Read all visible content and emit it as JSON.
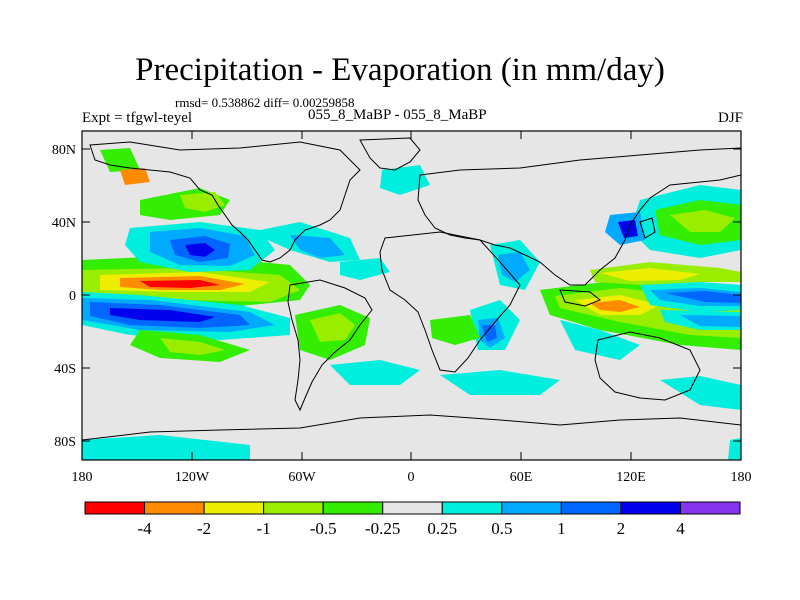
{
  "title": "Precipitation - Evaporation (in mm/day)",
  "stats": "rmsd= 0.538862 diff= 0.00259858",
  "expt_label": "Expt = tfgwl-teyel",
  "case_label": "055_8_MaBP - 055_8_MaBP",
  "season": "DJF",
  "lat_labels": [
    "80N",
    "40N",
    "0",
    "40S",
    "80S"
  ],
  "lon_labels": [
    "180",
    "120W",
    "60W",
    "0",
    "60E",
    "120E",
    "180"
  ],
  "colorbar": {
    "colors": [
      "#ff0000",
      "#ff8c00",
      "#eeee00",
      "#99ee00",
      "#33ee00",
      "#e6e6e6",
      "#00eedd",
      "#00aaff",
      "#0066ff",
      "#0000ee",
      "#8833ee"
    ],
    "labels": [
      "-4",
      "-2",
      "-1",
      "-0.5",
      "-0.25",
      "0.25",
      "0.5",
      "1",
      "2",
      "4"
    ]
  },
  "colors": {
    "land_ocean_background": "#e6e6e6",
    "coastline": "#000000"
  }
}
